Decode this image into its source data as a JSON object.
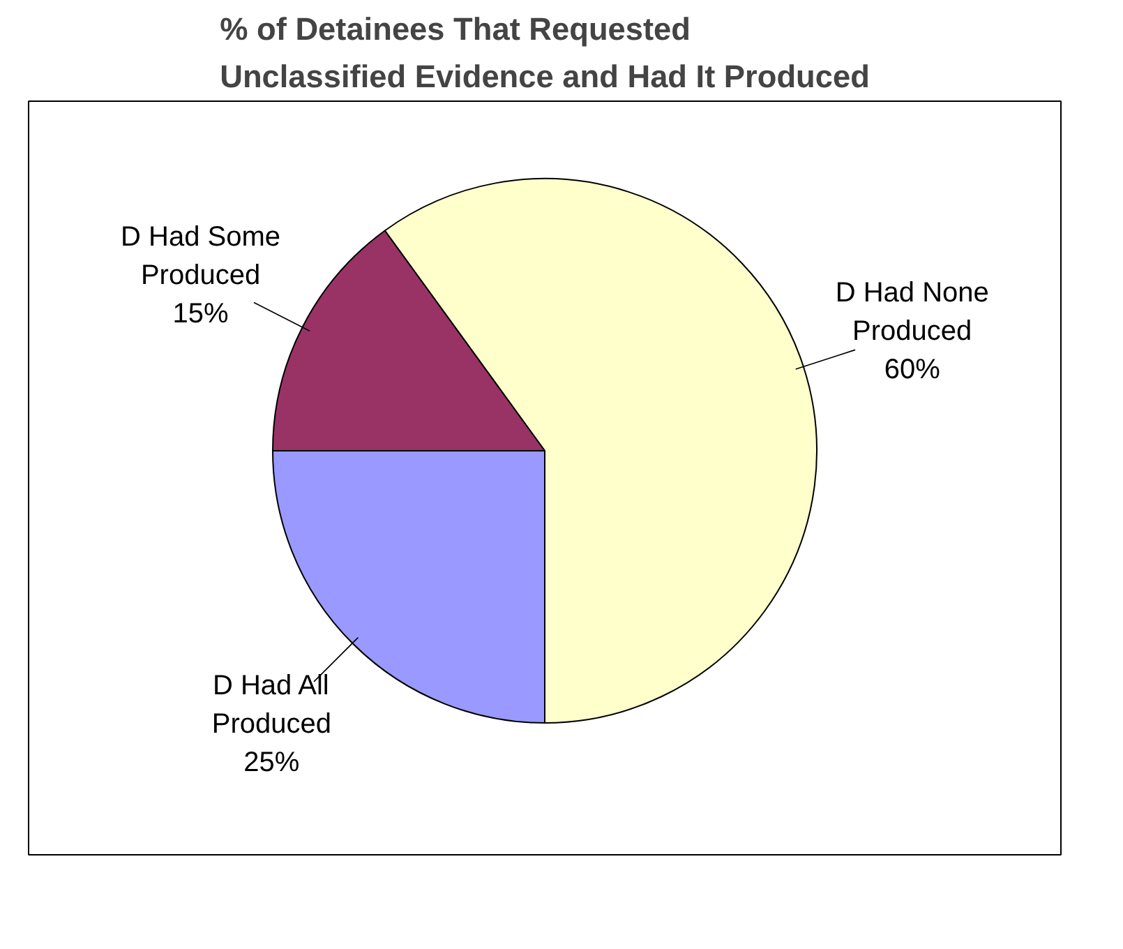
{
  "chart_data": {
    "type": "pie",
    "title": "% of Detainees That Requested\nUnclassified Evidence and Had It Produced",
    "categories": [
      "D Had None Produced",
      "D Had All Produced",
      "D Had Some Produced"
    ],
    "values": [
      60,
      25,
      15
    ],
    "value_labels": [
      "60%",
      "25%",
      "15%"
    ],
    "colors": [
      "#ffffcc",
      "#9999ff",
      "#993366"
    ]
  }
}
